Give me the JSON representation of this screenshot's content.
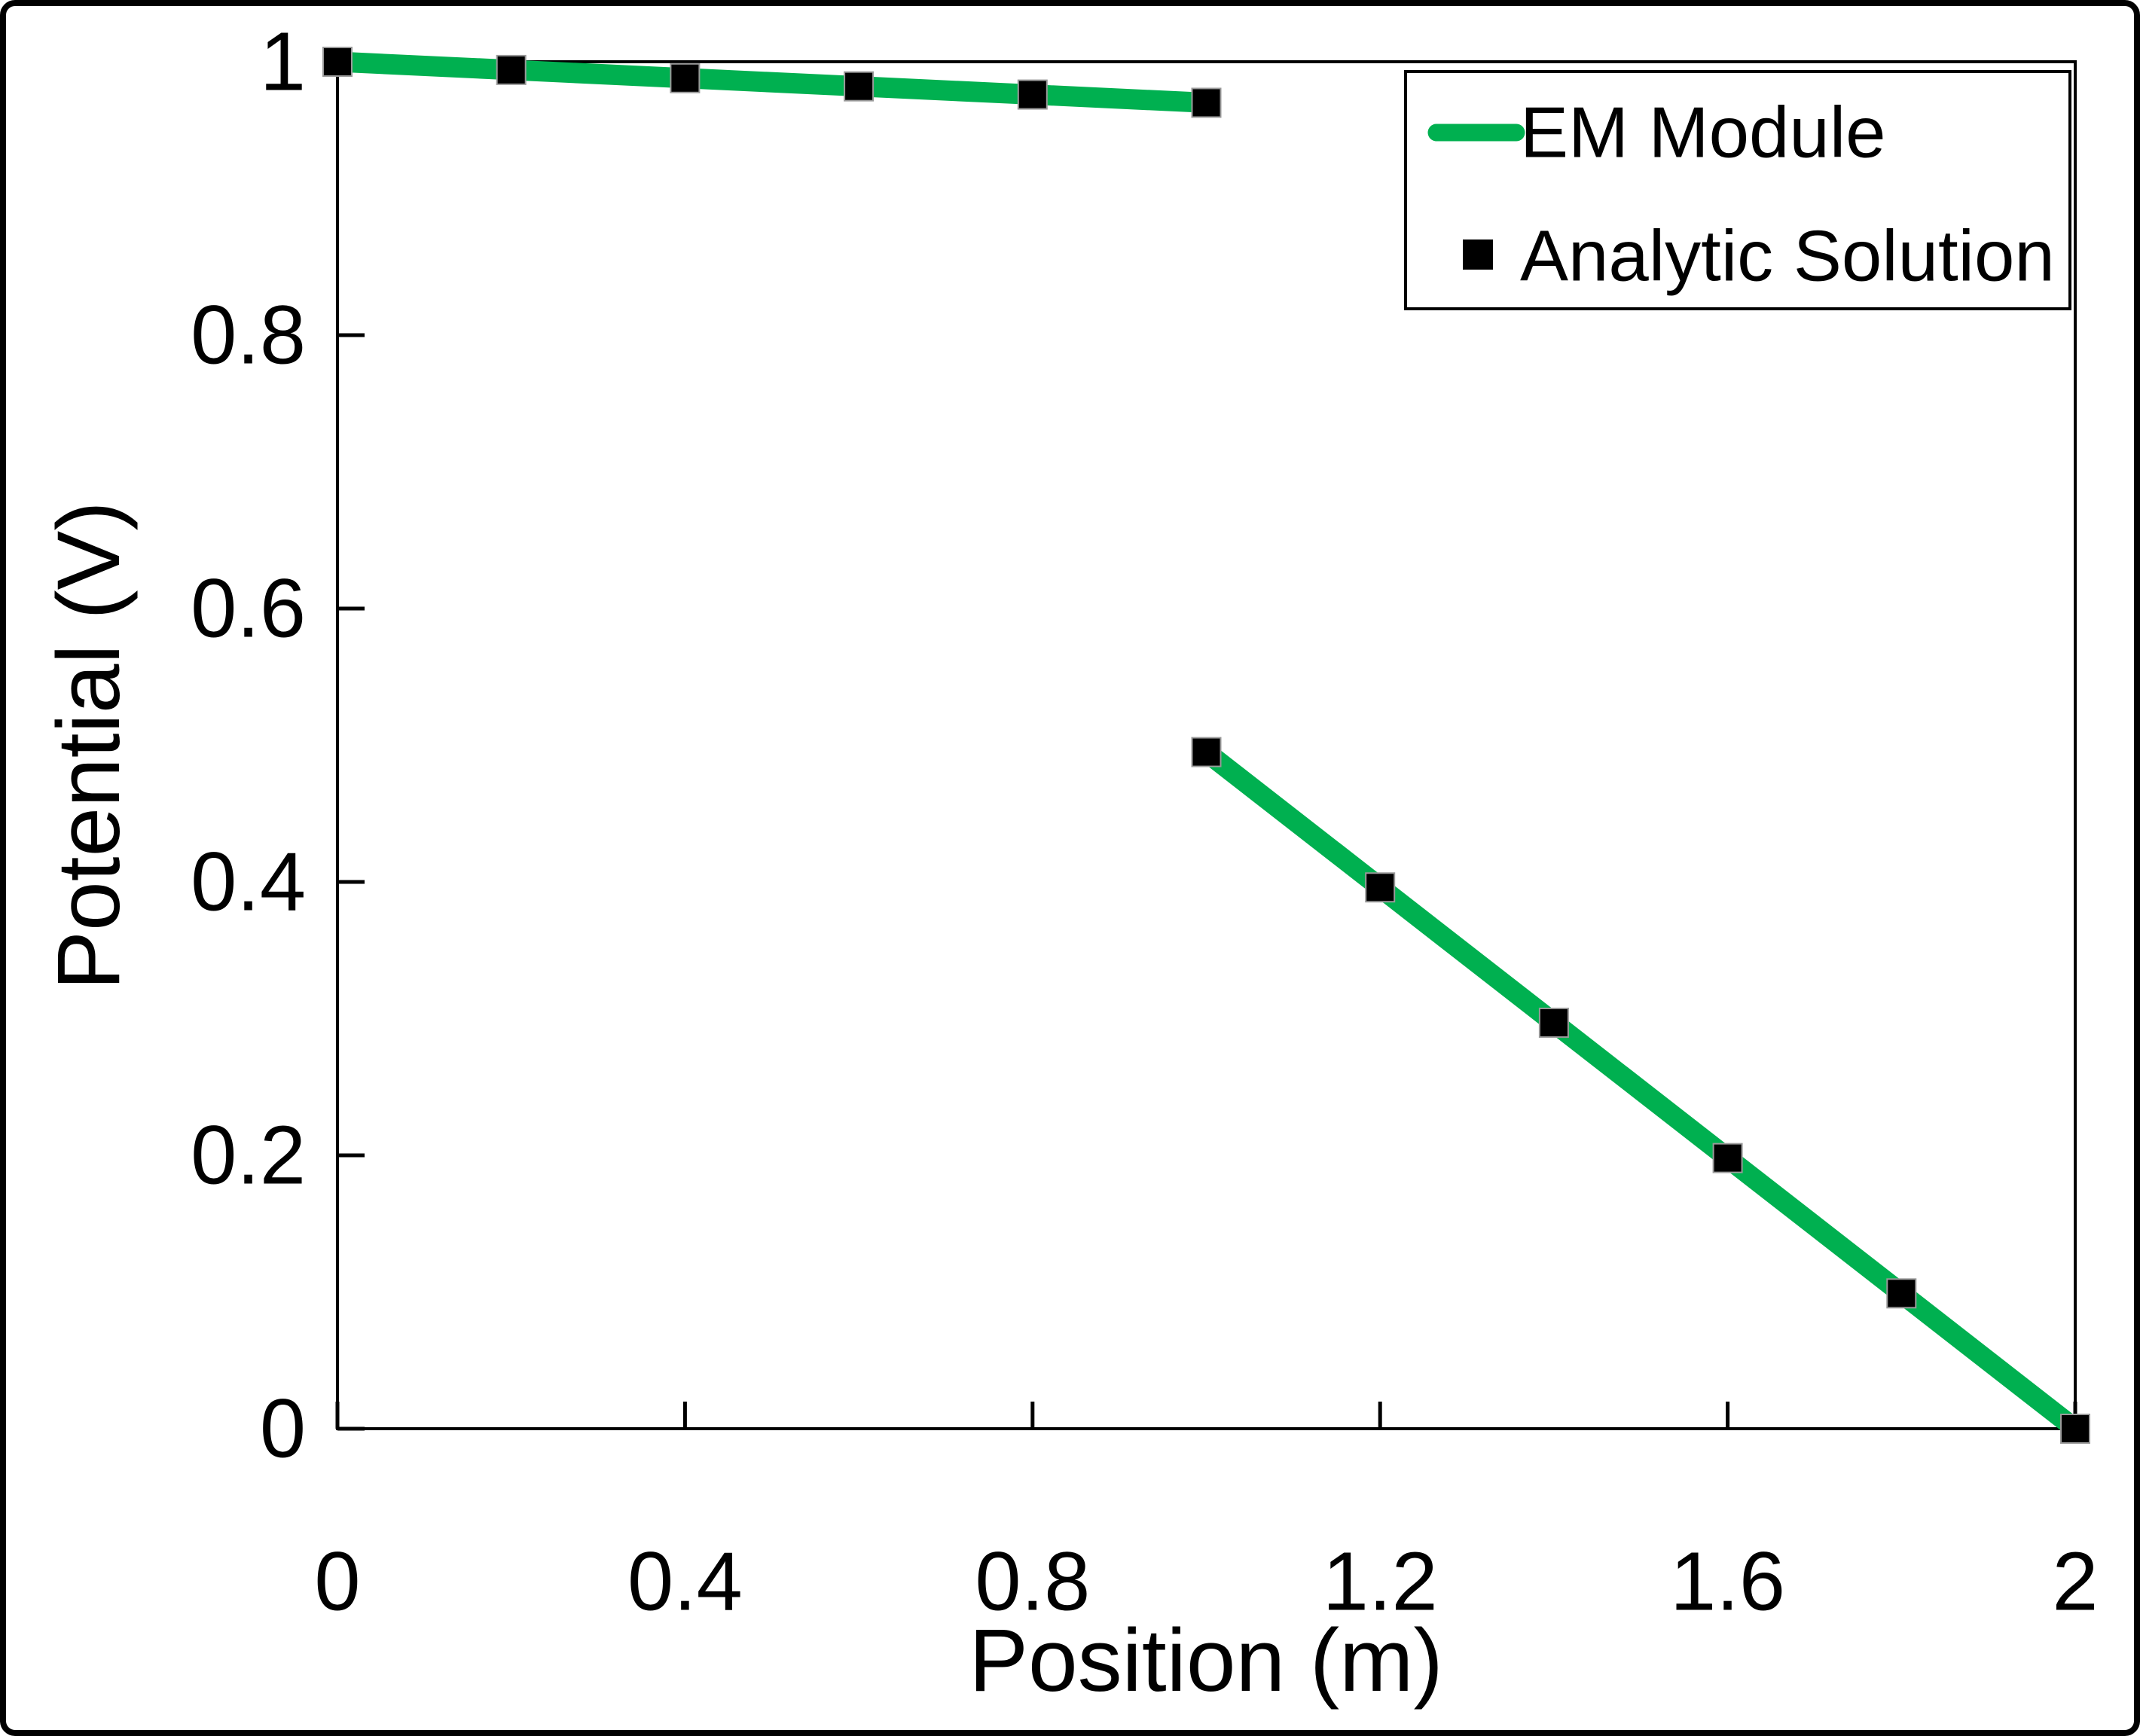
{
  "chart_data": {
    "type": "line",
    "title": "",
    "xlabel": "Position (m)",
    "ylabel": "Potential (V)",
    "xlim": [
      0,
      2
    ],
    "ylim": [
      0,
      1
    ],
    "grid": false,
    "legend_position": "top-right-inside",
    "x_ticks": [
      {
        "value": 0,
        "label": "0"
      },
      {
        "value": 0.4,
        "label": "0.4"
      },
      {
        "value": 0.8,
        "label": "0.8"
      },
      {
        "value": 1.2,
        "label": "1.2"
      },
      {
        "value": 1.6,
        "label": "1.6"
      },
      {
        "value": 2,
        "label": "2"
      }
    ],
    "y_ticks": [
      {
        "value": 0,
        "label": "0"
      },
      {
        "value": 0.2,
        "label": "0.2"
      },
      {
        "value": 0.4,
        "label": "0.4"
      },
      {
        "value": 0.6,
        "label": "0.6"
      },
      {
        "value": 0.8,
        "label": "0.8"
      },
      {
        "value": 1,
        "label": "1"
      }
    ],
    "series": [
      {
        "name": "EM Module",
        "type": "line",
        "color": "#00B050",
        "line_width": 27,
        "segments": [
          [
            [
              0,
              1.0
            ],
            [
              0.2,
              0.994
            ],
            [
              0.4,
              0.988
            ],
            [
              0.6,
              0.982
            ],
            [
              0.8,
              0.976
            ],
            [
              1.0,
              0.97
            ]
          ],
          [
            [
              1.0,
              0.495
            ],
            [
              1.2,
              0.396
            ],
            [
              1.4,
              0.297
            ],
            [
              1.6,
              0.198
            ],
            [
              1.8,
              0.099
            ],
            [
              2.0,
              0.0
            ]
          ]
        ]
      },
      {
        "name": "Analytic Solution",
        "type": "scatter",
        "marker": "square",
        "color": "#000000",
        "points": [
          [
            0,
            1.0
          ],
          [
            0.2,
            0.994
          ],
          [
            0.4,
            0.988
          ],
          [
            0.6,
            0.982
          ],
          [
            0.8,
            0.976
          ],
          [
            1.0,
            0.97
          ],
          [
            1.0,
            0.495
          ],
          [
            1.2,
            0.396
          ],
          [
            1.4,
            0.297
          ],
          [
            1.6,
            0.198
          ],
          [
            1.8,
            0.099
          ],
          [
            2.0,
            0.0
          ]
        ]
      }
    ],
    "axis_color": "#000000",
    "frame_color": "#000000"
  }
}
